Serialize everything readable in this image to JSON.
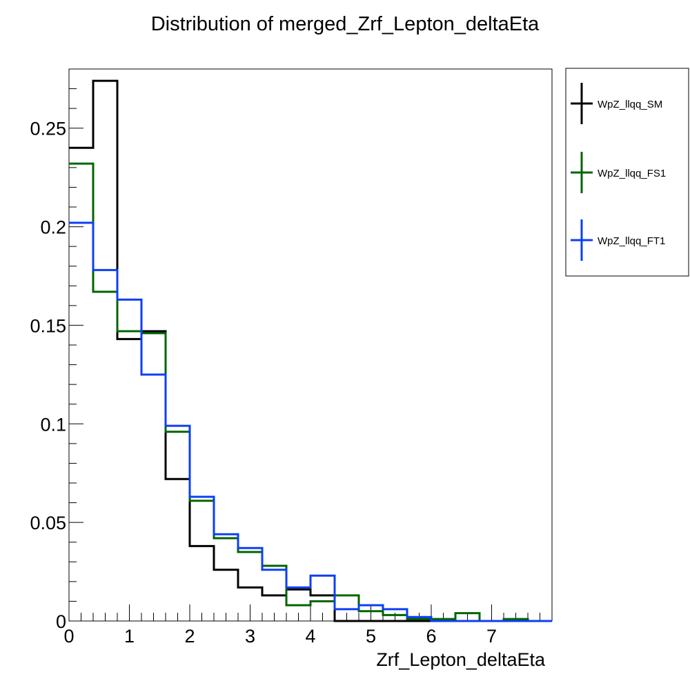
{
  "chart_data": {
    "type": "histogram",
    "title": "Distribution of merged_Zrf_Lepton_deltaEta",
    "xlabel": "Zrf_Lepton_deltaEta",
    "ylabel": "",
    "xlim": [
      0,
      8
    ],
    "ylim": [
      0,
      0.28
    ],
    "grid": false,
    "legend_position": "right-outside-top",
    "x_ticks": [
      "0",
      "1",
      "2",
      "3",
      "4",
      "5",
      "6",
      "7"
    ],
    "y_ticks": [
      "0",
      "0.05",
      "0.1",
      "0.15",
      "0.2",
      "0.25"
    ],
    "bin_edges": [
      0,
      0.4,
      0.8,
      1.2,
      1.6,
      2.0,
      2.4,
      2.8,
      3.2,
      3.6,
      4.0,
      4.4,
      4.8,
      5.2,
      5.6,
      6.0,
      6.4,
      6.8,
      7.2,
      7.6,
      8.0
    ],
    "series": [
      {
        "name": "WpZ_llqq_SM",
        "color": "#000000",
        "values": [
          0.24,
          0.274,
          0.143,
          0.147,
          0.072,
          0.038,
          0.026,
          0.017,
          0.013,
          0.016,
          0.013,
          0.0,
          0.0,
          0.0,
          0.0,
          0.0,
          0.0,
          0.0,
          0.0,
          0.0
        ]
      },
      {
        "name": "WpZ_llqq_FS1",
        "color": "#006400",
        "values": [
          0.232,
          0.167,
          0.147,
          0.146,
          0.096,
          0.061,
          0.042,
          0.035,
          0.028,
          0.008,
          0.01,
          0.013,
          0.005,
          0.003,
          0.001,
          0.001,
          0.004,
          0.0,
          0.001,
          0.0
        ]
      },
      {
        "name": "WpZ_llqq_FT1",
        "color": "#0b3ef5",
        "values": [
          0.202,
          0.178,
          0.163,
          0.125,
          0.099,
          0.063,
          0.044,
          0.037,
          0.026,
          0.017,
          0.023,
          0.006,
          0.008,
          0.006,
          0.002,
          0.0,
          0.0,
          0.0,
          0.0,
          0.0
        ]
      }
    ]
  }
}
